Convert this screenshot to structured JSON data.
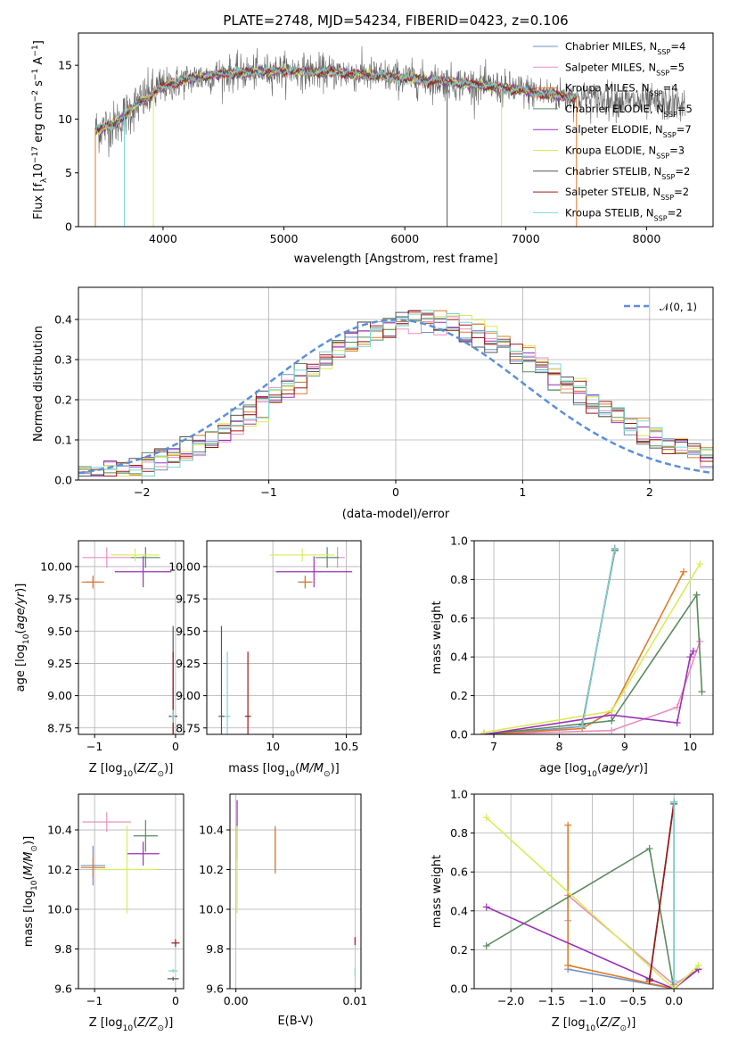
{
  "palette": {
    "Chabrier MILES": "#6f93c4",
    "Salpeter MILES": "#e88fbf",
    "Kroupa MILES": "#e07b27",
    "Chabrier ELODIE": "#5a8a60",
    "Salpeter ELODIE": "#9b30b8",
    "Kroupa ELODIE": "#d8ec55",
    "Chabrier STELIB": "#555555",
    "Salpeter STELIB": "#a01818",
    "Kroupa STELIB": "#7ad6d6",
    "gauss": "#5b8fdc"
  },
  "chart_data": [
    {
      "id": "spectrum",
      "type": "line",
      "title": "PLATE=2748, MJD=54234, FIBERID=0423, z=0.106",
      "xlabel": "wavelength [Angstrom, rest frame]",
      "ylabel": "Flux [f_λ 10^-17 erg cm^-2 s^-1 A^-1]",
      "xlim": [
        3300,
        8550
      ],
      "ylim": [
        0,
        18
      ],
      "xticks": [
        4000,
        5000,
        6000,
        7000,
        8000
      ],
      "yticks": [
        0,
        5,
        10,
        15
      ],
      "grid": false,
      "legend_position": "top-right",
      "continuum": [
        [
          3440,
          9.0
        ],
        [
          3600,
          9.5
        ],
        [
          3800,
          11.5
        ],
        [
          4000,
          13.0
        ],
        [
          4200,
          13.7
        ],
        [
          4500,
          14.2
        ],
        [
          5000,
          14.5
        ],
        [
          5500,
          14.3
        ],
        [
          6000,
          13.8
        ],
        [
          6500,
          13.3
        ],
        [
          7000,
          12.6
        ],
        [
          7400,
          12.0
        ],
        [
          8000,
          11.5
        ],
        [
          8300,
          11.3
        ]
      ],
      "observed_range": [
        3440,
        8320
      ],
      "model_range": [
        3440,
        7420
      ],
      "series": [
        {
          "name": "Chabrier MILES, N_SSP=4",
          "label_main": "Chabrier MILES, N",
          "label_sub": "SSP",
          "label_end": "=4"
        },
        {
          "name": "Salpeter MILES, N_SSP=5",
          "label_main": "Salpeter MILES, N",
          "label_sub": "SSP",
          "label_end": "=5"
        },
        {
          "name": "Kroupa MILES, N_SSP=4",
          "label_main": "Kroupa MILES, N",
          "label_sub": "SSP",
          "label_end": "=4"
        },
        {
          "name": "Chabrier ELODIE, N_SSP=5",
          "label_main": "Chabrier ELODIE, N",
          "label_sub": "SSP",
          "label_end": "=5"
        },
        {
          "name": "Salpeter ELODIE, N_SSP=7",
          "label_main": "Salpeter ELODIE, N",
          "label_sub": "SSP",
          "label_end": "=7"
        },
        {
          "name": "Kroupa ELODIE, N_SSP=3",
          "label_main": "Kroupa ELODIE, N",
          "label_sub": "SSP",
          "label_end": "=3"
        },
        {
          "name": "Chabrier STELIB, N_SSP=2",
          "label_main": "Chabrier STELIB, N",
          "label_sub": "SSP",
          "label_end": "=2"
        },
        {
          "name": "Salpeter STELIB, N_SSP=2",
          "label_main": "Salpeter STELIB, N",
          "label_sub": "SSP",
          "label_end": "=2"
        },
        {
          "name": "Kroupa STELIB, N_SSP=2",
          "label_main": "Kroupa STELIB, N",
          "label_sub": "SSP",
          "label_end": "=2"
        }
      ]
    },
    {
      "id": "residuals",
      "type": "line",
      "xlabel": "(data-model)/error",
      "ylabel": "Normed distribution",
      "xlim": [
        -2.5,
        2.5
      ],
      "ylim": [
        0,
        0.48
      ],
      "xticks": [
        -2,
        -1,
        0,
        1,
        2
      ],
      "yticks": [
        0.0,
        0.1,
        0.2,
        0.3,
        0.4
      ],
      "grid": true,
      "legend_position": "top-right",
      "legend_label": "𝒩(0, 1)",
      "bin_width": 0.1
    },
    {
      "id": "age_vs_Z",
      "type": "scatter",
      "xlabel": "Z [log10(Z/Z⊙)]",
      "ylabel": "age  [log10(age/yr)]",
      "xlim": [
        -1.2,
        0.1
      ],
      "ylim": [
        8.7,
        10.2
      ],
      "xticks": [
        -1,
        0
      ],
      "yticks": [
        8.75,
        9.0,
        9.25,
        9.5,
        9.75,
        10.0
      ],
      "grid": true,
      "points": [
        {
          "s": "Chabrier MILES",
          "x": -1.02,
          "y": 9.88,
          "xerr": 0.1,
          "yerr": 0.04
        },
        {
          "s": "Salpeter MILES",
          "x": -0.85,
          "y": 10.07,
          "xerr": 0.3,
          "yerr": 0.08
        },
        {
          "s": "Kroupa MILES",
          "x": -1.02,
          "y": 9.88,
          "xerr": 0.14,
          "yerr": 0.05
        },
        {
          "s": "Chabrier ELODIE",
          "x": -0.37,
          "y": 10.07,
          "xerr": 0.18,
          "yerr": 0.08
        },
        {
          "s": "Salpeter ELODIE",
          "x": -0.4,
          "y": 9.96,
          "xerr": 0.35,
          "yerr": 0.12
        },
        {
          "s": "Kroupa ELODIE",
          "x": -0.5,
          "y": 10.09,
          "xerr": 0.3,
          "yerr": 0.05
        },
        {
          "s": "Chabrier STELIB",
          "x": -0.03,
          "y": 8.84,
          "xerr": 0.05,
          "yerr": 0.7
        },
        {
          "s": "Salpeter STELIB",
          "x": -0.03,
          "y": 8.84,
          "xerr": 0.05,
          "yerr": 0.5
        },
        {
          "s": "Kroupa STELIB",
          "x": -0.03,
          "y": 8.84,
          "xerr": 0.03,
          "yerr": 0.05
        }
      ]
    },
    {
      "id": "age_vs_mass",
      "type": "scatter",
      "xlabel": "mass [log10(M/M⊙)]",
      "ylabel": "",
      "xlim": [
        9.55,
        10.6
      ],
      "ylim": [
        8.7,
        10.2
      ],
      "xticks": [
        10.0,
        10.5
      ],
      "yticks": [
        8.75,
        9.0,
        9.25,
        9.5,
        9.75,
        10.0
      ],
      "grid": true,
      "points": [
        {
          "s": "Chabrier MILES",
          "x": 10.22,
          "y": 9.88,
          "xerr": 0.05,
          "yerr": 0.04
        },
        {
          "s": "Salpeter MILES",
          "x": 10.44,
          "y": 10.07,
          "xerr": 0.05,
          "yerr": 0.08
        },
        {
          "s": "Kroupa MILES",
          "x": 10.22,
          "y": 9.88,
          "xerr": 0.04,
          "yerr": 0.05
        },
        {
          "s": "Chabrier ELODIE",
          "x": 10.37,
          "y": 10.07,
          "xerr": 0.08,
          "yerr": 0.08
        },
        {
          "s": "Salpeter ELODIE",
          "x": 10.28,
          "y": 9.96,
          "xerr": 0.26,
          "yerr": 0.12
        },
        {
          "s": "Kroupa ELODIE",
          "x": 10.2,
          "y": 10.09,
          "xerr": 0.22,
          "yerr": 0.05
        },
        {
          "s": "Chabrier STELIB",
          "x": 9.65,
          "y": 8.84,
          "xerr": 0.02,
          "yerr": 0.7
        },
        {
          "s": "Salpeter STELIB",
          "x": 9.83,
          "y": 8.84,
          "xerr": 0.02,
          "yerr": 0.5
        },
        {
          "s": "Kroupa STELIB",
          "x": 9.69,
          "y": 8.84,
          "xerr": 0.02,
          "yerr": 0.5
        }
      ]
    },
    {
      "id": "mass_vs_Z",
      "type": "scatter",
      "xlabel": "Z [log10(Z/Z⊙)]",
      "ylabel": "mass [log10(M/M⊙)]",
      "xlim": [
        -1.2,
        0.1
      ],
      "ylim": [
        9.6,
        10.58
      ],
      "xticks": [
        -1,
        0
      ],
      "yticks": [
        9.6,
        9.8,
        10.0,
        10.2,
        10.4
      ],
      "grid": true,
      "points": [
        {
          "s": "Chabrier MILES",
          "x": -1.02,
          "y": 10.22,
          "xerr": 0.15,
          "yerr": 0.1
        },
        {
          "s": "Salpeter MILES",
          "x": -0.85,
          "y": 10.44,
          "xerr": 0.3,
          "yerr": 0.05
        },
        {
          "s": "Kroupa MILES",
          "x": -1.02,
          "y": 10.21,
          "xerr": 0.15,
          "yerr": 0.05
        },
        {
          "s": "Chabrier ELODIE",
          "x": -0.37,
          "y": 10.37,
          "xerr": 0.15,
          "yerr": 0.08
        },
        {
          "s": "Salpeter ELODIE",
          "x": -0.4,
          "y": 10.28,
          "xerr": 0.2,
          "yerr": 0.06
        },
        {
          "s": "Kroupa ELODIE",
          "x": -0.6,
          "y": 10.2,
          "xerr": 0.38,
          "yerr": 0.22
        },
        {
          "s": "Chabrier STELIB",
          "x": -0.03,
          "y": 9.65,
          "xerr": 0.07,
          "yerr": 0.01
        },
        {
          "s": "Salpeter STELIB",
          "x": 0.0,
          "y": 9.83,
          "xerr": 0.05,
          "yerr": 0.02
        },
        {
          "s": "Kroupa STELIB",
          "x": -0.03,
          "y": 9.69,
          "xerr": 0.06,
          "yerr": 0.01
        }
      ]
    },
    {
      "id": "mass_vs_EBV",
      "type": "scatter",
      "xlabel": "E(B-V)",
      "ylabel": "",
      "xlim": [
        -0.0005,
        0.0105
      ],
      "ylim": [
        9.6,
        10.58
      ],
      "xticks": [
        0.0,
        0.01
      ],
      "xtick_labels": [
        "0.00",
        "0.01"
      ],
      "yticks": [
        9.6,
        9.8,
        10.0,
        10.2,
        10.4
      ],
      "grid": true,
      "points": [
        {
          "s": "Chabrier MILES",
          "x": 0.0033,
          "y": 10.3,
          "xerr": 0,
          "yerr": 0.12
        },
        {
          "s": "Kroupa MILES",
          "x": 0.0033,
          "y": 10.3,
          "xerr": 0,
          "yerr": 0.11
        },
        {
          "s": "Salpeter ELODIE",
          "x": 0.0001,
          "y": 10.4,
          "xerr": 0,
          "yerr": 0.15
        },
        {
          "s": "Kroupa ELODIE",
          "x": 0.0001,
          "y": 10.2,
          "xerr": 0,
          "yerr": 0.22
        },
        {
          "s": "Salpeter STELIB",
          "x": 0.01,
          "y": 9.84,
          "xerr": 0,
          "yerr": 0.02
        },
        {
          "s": "Kroupa STELIB",
          "x": 0.01,
          "y": 9.68,
          "xerr": 0,
          "yerr": 0.02
        }
      ]
    },
    {
      "id": "weight_vs_age",
      "type": "line",
      "xlabel": "age  [log10(age/yr)]",
      "ylabel": "mass weight",
      "xlim": [
        6.7,
        10.35
      ],
      "ylim": [
        0,
        1.0
      ],
      "xticks": [
        7,
        8,
        9,
        10
      ],
      "yticks": [
        0.0,
        0.2,
        0.4,
        0.6,
        0.8,
        1.0
      ],
      "grid": true,
      "series": [
        {
          "s": "Chabrier MILES",
          "pts": [
            [
              6.85,
              0.0
            ],
            [
              8.35,
              0.04
            ],
            [
              8.85,
              0.96
            ]
          ]
        },
        {
          "s": "Salpeter MILES",
          "pts": [
            [
              6.85,
              0.0
            ],
            [
              8.8,
              0.02
            ],
            [
              9.8,
              0.14
            ],
            [
              10.15,
              0.48
            ]
          ]
        },
        {
          "s": "Kroupa MILES",
          "pts": [
            [
              6.85,
              0.0
            ],
            [
              8.35,
              0.03
            ],
            [
              8.8,
              0.12
            ],
            [
              9.9,
              0.84
            ]
          ]
        },
        {
          "s": "Chabrier ELODIE",
          "pts": [
            [
              6.85,
              0.0
            ],
            [
              8.8,
              0.07
            ],
            [
              10.1,
              0.72
            ],
            [
              10.18,
              0.22
            ]
          ]
        },
        {
          "s": "Salpeter ELODIE",
          "pts": [
            [
              6.85,
              0.0
            ],
            [
              8.8,
              0.1
            ],
            [
              9.8,
              0.06
            ],
            [
              10.0,
              0.4
            ],
            [
              10.05,
              0.43
            ]
          ]
        },
        {
          "s": "Kroupa ELODIE",
          "pts": [
            [
              6.85,
              0.01
            ],
            [
              8.8,
              0.12
            ],
            [
              10.15,
              0.88
            ]
          ]
        },
        {
          "s": "Chabrier STELIB",
          "pts": [
            [
              8.35,
              0.05
            ],
            [
              8.85,
              0.95
            ]
          ]
        },
        {
          "s": "Salpeter STELIB",
          "pts": [
            [
              8.35,
              0.04
            ],
            [
              8.85,
              0.96
            ]
          ]
        },
        {
          "s": "Kroupa STELIB",
          "pts": [
            [
              8.35,
              0.04
            ],
            [
              8.85,
              0.96
            ]
          ]
        }
      ]
    },
    {
      "id": "weight_vs_Z",
      "type": "line",
      "xlabel": "Z [log10(Z/Z⊙)]",
      "ylabel": "mass weight",
      "xlim": [
        -2.45,
        0.48
      ],
      "ylim": [
        0,
        1.0
      ],
      "xticks": [
        -2.0,
        -1.5,
        -1.0,
        -0.5,
        0.0
      ],
      "xtick_labels": [
        "−2.0",
        "−1.5",
        "−1.0",
        "−0.5",
        "0.0"
      ],
      "yticks": [
        0.0,
        0.2,
        0.4,
        0.6,
        0.8,
        1.0
      ],
      "grid": true,
      "series": [
        {
          "s": "Chabrier MILES",
          "pts": [
            [
              -1.3,
              0.1
            ],
            [
              0.0,
              0.0
            ],
            [
              0.0,
              0.96
            ]
          ]
        },
        {
          "s": "Salpeter MILES",
          "pts": [
            [
              -1.3,
              0.35
            ],
            [
              -1.3,
              0.48
            ],
            [
              0.0,
              0.02
            ],
            [
              0.3,
              0.1
            ]
          ]
        },
        {
          "s": "Kroupa MILES",
          "pts": [
            [
              -1.3,
              0.84
            ],
            [
              -1.3,
              0.12
            ],
            [
              0.0,
              0.0
            ],
            [
              0.3,
              0.1
            ]
          ]
        },
        {
          "s": "Chabrier ELODIE",
          "pts": [
            [
              -2.3,
              0.22
            ],
            [
              -0.3,
              0.72
            ],
            [
              0.0,
              0.0
            ],
            [
              0.3,
              0.1
            ]
          ]
        },
        {
          "s": "Salpeter ELODIE",
          "pts": [
            [
              -2.3,
              0.42
            ],
            [
              -0.3,
              0.05
            ],
            [
              0.0,
              0.0
            ],
            [
              0.3,
              0.1
            ]
          ]
        },
        {
          "s": "Kroupa ELODIE",
          "pts": [
            [
              -2.3,
              0.88
            ],
            [
              0.0,
              0.0
            ],
            [
              0.3,
              0.12
            ]
          ]
        },
        {
          "s": "Chabrier STELIB",
          "pts": [
            [
              -0.3,
              0.05
            ],
            [
              0.0,
              0.95
            ]
          ]
        },
        {
          "s": "Salpeter STELIB",
          "pts": [
            [
              -0.3,
              0.04
            ],
            [
              0.0,
              0.96
            ]
          ]
        },
        {
          "s": "Kroupa STELIB",
          "pts": [
            [
              0.0,
              0.04
            ],
            [
              0.0,
              0.96
            ]
          ]
        }
      ]
    }
  ]
}
